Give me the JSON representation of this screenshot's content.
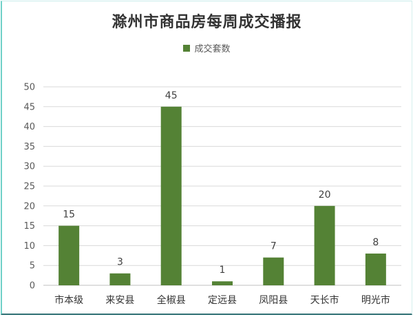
{
  "chart_data": {
    "type": "bar",
    "title": "滁州市商品房每周成交播报",
    "legend": {
      "entries": [
        "成交套数"
      ],
      "placement": "top"
    },
    "categories": [
      "市本级",
      "来安县",
      "全椒县",
      "定远县",
      "凤阳县",
      "天长市",
      "明光市"
    ],
    "series": [
      {
        "name": "成交套数",
        "values": [
          15,
          3,
          45,
          1,
          7,
          20,
          8
        ],
        "color": "#548235"
      }
    ],
    "ylim": [
      0,
      50
    ],
    "yticks": [
      0,
      5,
      10,
      15,
      20,
      25,
      30,
      35,
      40,
      45,
      50
    ],
    "grid": true,
    "data_labels": true
  }
}
